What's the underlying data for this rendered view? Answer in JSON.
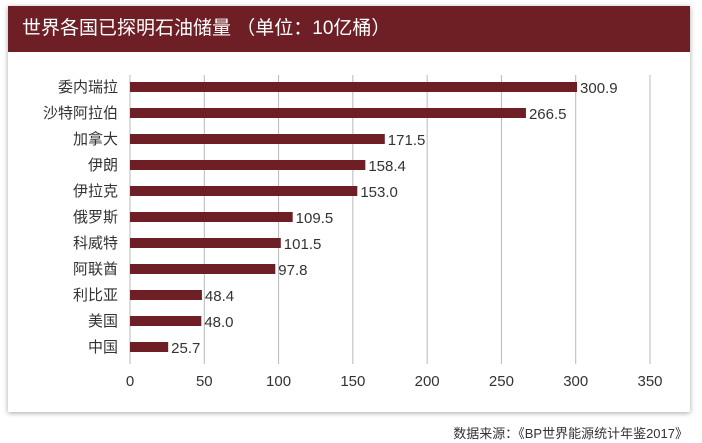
{
  "title": "世界各国已探明石油储量 （单位：10亿桶）",
  "source": "数据来源：《BP世界能源统计年鉴2017》",
  "colors": {
    "header": "#6e1f26",
    "bar": "#6e1f26",
    "grid": "#b8b8b8"
  },
  "chart_data": {
    "type": "bar",
    "orientation": "horizontal",
    "title": "世界各国已探明石油储量 （单位：10亿桶）",
    "categories": [
      "委内瑞拉",
      "沙特阿拉伯",
      "加拿大",
      "伊朗",
      "伊拉克",
      "俄罗斯",
      "科威特",
      "阿联酋",
      "利比亚",
      "美国",
      "中国"
    ],
    "values": [
      300.9,
      266.5,
      171.5,
      158.4,
      153.0,
      109.5,
      101.5,
      97.8,
      48.4,
      48.0,
      25.7
    ],
    "value_labels": [
      "300.9",
      "266.5",
      "171.5",
      "158.4",
      "153.0",
      "109.5",
      "101.5",
      "97.8",
      "48.4",
      "48.0",
      "25.7"
    ],
    "xlim": [
      0,
      350
    ],
    "xticks": [
      "0",
      "50",
      "100",
      "150",
      "200",
      "250",
      "300",
      "350"
    ],
    "grid": "vertical",
    "xlabel": "",
    "ylabel": ""
  }
}
